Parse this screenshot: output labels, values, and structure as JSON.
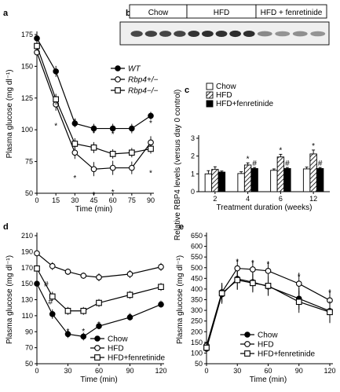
{
  "panel_letters": [
    "a",
    "b",
    "c",
    "d",
    "e"
  ],
  "chart_data": [
    {
      "panel": "a",
      "type": "line",
      "ylabel": "Plasma glucose (mg dl⁻¹)",
      "xlabel": "Time (min)",
      "xlim": [
        0,
        90
      ],
      "ylim": [
        50,
        175
      ],
      "xticks": [
        0,
        15,
        30,
        45,
        60,
        75,
        90
      ],
      "yticks": [
        50,
        75,
        100,
        125,
        150,
        175
      ],
      "series": [
        {
          "name": "WT",
          "marker": "filled-circle",
          "x": [
            0,
            15,
            30,
            45,
            60,
            75,
            90
          ],
          "values": [
            172,
            146,
            105,
            101,
            101,
            101,
            111
          ]
        },
        {
          "name": "Rbp4+/−",
          "marker": "open-circle",
          "x": [
            0,
            15,
            30,
            45,
            60,
            75,
            90
          ],
          "values": [
            161,
            120,
            82,
            69,
            70,
            70,
            90
          ]
        },
        {
          "name": "Rbp4−/−",
          "marker": "open-square",
          "x": [
            0,
            15,
            30,
            45,
            60,
            75,
            90
          ],
          "values": [
            166,
            124,
            89,
            86,
            81,
            82,
            85
          ]
        }
      ],
      "annotations": [
        "*",
        "*",
        "*",
        "*",
        "*",
        "*",
        "*",
        "*",
        "*",
        "*"
      ],
      "legend_position": "right"
    },
    {
      "panel": "b",
      "type": "other",
      "group_labels": [
        "Chow",
        "HFD",
        "HFD + fenretinide"
      ],
      "lanes_per_group": [
        4,
        5,
        4
      ],
      "band_intensity": [
        0.85,
        0.88,
        0.86,
        0.87,
        0.95,
        0.97,
        0.96,
        0.98,
        0.97,
        0.55,
        0.5,
        0.52,
        0.5
      ]
    },
    {
      "panel": "c",
      "type": "bar",
      "ylabel": "Relative RBP4 levels (versus day 0 control)",
      "xlabel": "Treatment duration (weeks)",
      "categories": [
        "2",
        "4",
        "6",
        "12"
      ],
      "ylim": [
        0,
        3
      ],
      "yticks": [
        0,
        1,
        2,
        3
      ],
      "series": [
        {
          "name": "Chow",
          "pattern": "open",
          "values": [
            1.0,
            1.02,
            1.2,
            1.28
          ]
        },
        {
          "name": "HFD",
          "pattern": "hatched",
          "values": [
            1.25,
            1.5,
            1.95,
            2.12
          ]
        },
        {
          "name": "HFD+fenretinide",
          "pattern": "filled",
          "values": [
            1.1,
            1.3,
            1.3,
            1.3
          ]
        }
      ],
      "annotations": [
        "*",
        "#",
        "*",
        "#",
        "*",
        "#"
      ],
      "legend_position": "top"
    },
    {
      "panel": "d",
      "type": "line",
      "ylabel": "Plasma glucose (mg dl⁻¹)",
      "xlabel": "Time (min)",
      "xlim": [
        0,
        120
      ],
      "ylim": [
        50,
        210
      ],
      "xticks": [
        0,
        30,
        60,
        90,
        120
      ],
      "yticks": [
        50,
        70,
        90,
        110,
        130,
        150,
        170,
        190,
        210
      ],
      "series": [
        {
          "name": "Chow",
          "marker": "filled-circle",
          "x": [
            0,
            15,
            30,
            45,
            60,
            90,
            120
          ],
          "values": [
            150,
            112,
            87,
            84,
            97,
            108,
            124
          ]
        },
        {
          "name": "HFD",
          "marker": "open-circle",
          "x": [
            0,
            15,
            30,
            45,
            60,
            90,
            120
          ],
          "values": [
            188,
            172,
            165,
            160,
            158,
            162,
            171
          ]
        },
        {
          "name": "HFD+fenretinide",
          "marker": "open-square",
          "x": [
            0,
            15,
            30,
            45,
            60,
            90,
            120
          ],
          "values": [
            169,
            134,
            116,
            116,
            126,
            136,
            146
          ]
        }
      ],
      "annotations": [
        "#",
        "#",
        "*",
        "*",
        "*",
        "*",
        "*"
      ],
      "legend_position": "bottom-right"
    },
    {
      "panel": "e",
      "type": "line",
      "ylabel": "Plasma glucose (mg dl⁻¹)",
      "xlabel": "Time (min)",
      "xlim": [
        0,
        120
      ],
      "ylim": [
        50,
        650
      ],
      "xticks": [
        0,
        30,
        60,
        90,
        120
      ],
      "yticks": [
        50,
        100,
        150,
        200,
        250,
        300,
        350,
        400,
        450,
        500,
        550,
        600,
        650
      ],
      "series": [
        {
          "name": "Chow",
          "marker": "filled-circle",
          "x": [
            0,
            15,
            30,
            45,
            60,
            90,
            120
          ],
          "values": [
            120,
            375,
            448,
            432,
            412,
            355,
            297
          ]
        },
        {
          "name": "HFD",
          "marker": "open-circle",
          "x": [
            0,
            15,
            30,
            45,
            60,
            90,
            120
          ],
          "values": [
            135,
            385,
            497,
            492,
            485,
            425,
            347
          ]
        },
        {
          "name": "HFD+fenretinide",
          "marker": "open-square",
          "x": [
            0,
            15,
            30,
            45,
            60,
            90,
            120
          ],
          "values": [
            125,
            380,
            442,
            428,
            415,
            340,
            292
          ]
        }
      ],
      "annotations": [
        "*",
        "*",
        "*",
        "*",
        "*"
      ],
      "legend_position": "bottom-left"
    }
  ]
}
